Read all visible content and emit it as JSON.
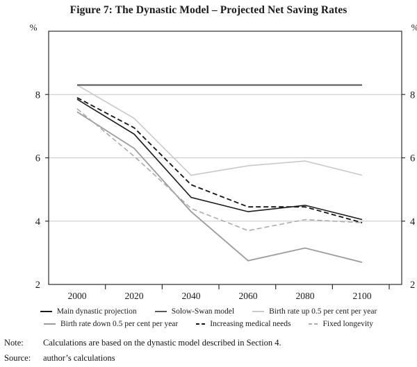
{
  "title": "Figure 7: The Dynastic Model – Projected Net Saving Rates",
  "chart_data": {
    "type": "line",
    "x": [
      2000,
      2020,
      2040,
      2060,
      2080,
      2100
    ],
    "x_tick_labels": [
      "2000",
      "2020",
      "2040",
      "2060",
      "2080",
      "2100"
    ],
    "y_axis": {
      "unit_label": "%",
      "tick_labels": [
        2,
        4,
        6,
        8
      ],
      "range": [
        2,
        10
      ],
      "gridlines": [
        4,
        6,
        8
      ],
      "grid_color": "#c6c6c6"
    },
    "axis_color": "#2b2b2b",
    "series": [
      {
        "name": "Main dynastic projection",
        "values": [
          7.85,
          6.75,
          4.75,
          4.3,
          4.5,
          4.05
        ],
        "color": "#1a1a1a",
        "dash": "solid",
        "width": 1.6
      },
      {
        "name": "Solow-Swan model",
        "values": [
          8.3,
          8.3,
          8.3,
          8.3,
          8.3,
          8.3
        ],
        "color": "#595959",
        "dash": "solid",
        "width": 2.1
      },
      {
        "name": "Birth rate up 0.5 per cent per year",
        "values": [
          8.3,
          7.25,
          5.45,
          5.75,
          5.9,
          5.45
        ],
        "color": "#c9c9c9",
        "dash": "solid",
        "width": 1.6
      },
      {
        "name": "Birth rate down 0.5 per cent per year",
        "values": [
          7.45,
          6.3,
          4.3,
          2.75,
          3.15,
          2.7
        ],
        "color": "#9b9b9b",
        "dash": "solid",
        "width": 1.8
      },
      {
        "name": "Increasing medical needs",
        "values": [
          7.9,
          6.95,
          5.15,
          4.45,
          4.45,
          3.95
        ],
        "color": "#111111",
        "dash": "dashed",
        "width": 1.8
      },
      {
        "name": "Fixed longevity",
        "values": [
          7.55,
          6.05,
          4.4,
          3.7,
          4.05,
          3.95
        ],
        "color": "#ababab",
        "dash": "dashed",
        "width": 1.6
      }
    ],
    "legend_rows": [
      [
        0,
        1,
        2
      ],
      [
        3,
        4,
        5
      ]
    ],
    "draw_order": [
      2,
      3,
      5,
      1,
      4,
      0
    ]
  },
  "note": {
    "label": "Note:",
    "text": "Calculations are based on the dynastic model described in Section 4."
  },
  "source": {
    "label": "Source:",
    "text": "author’s calculations"
  }
}
